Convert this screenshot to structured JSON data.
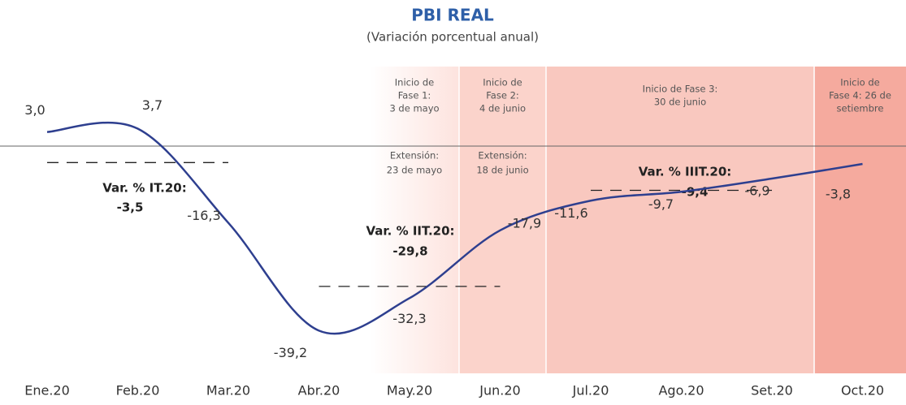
{
  "chart_data": {
    "type": "line",
    "title": "PBI REAL",
    "subtitle": "(Variación porcentual anual)",
    "categories": [
      "Ene.20",
      "Feb.20",
      "Mar.20",
      "Abr.20",
      "May.20",
      "Jun.20",
      "Jul.20",
      "Ago.20",
      "Set.20",
      "Oct.20"
    ],
    "series": [
      {
        "color": "#2e3f8f",
        "values": [
          3.0,
          3.7,
          -16.3,
          -39.2,
          -32.3,
          -17.9,
          -11.6,
          -9.7,
          -6.9,
          -3.8
        ],
        "value_labels": [
          "3,0",
          "3,7",
          "-16,3",
          "-39,2",
          "-32,3",
          "-17,9",
          "-11,6",
          "-9,7",
          "-6,9",
          "-3,8"
        ]
      }
    ],
    "quarters": [
      {
        "label": "Var. % IT.20:",
        "value": -3.5,
        "value_label": "-3,5"
      },
      {
        "label": "Var. % IIT.20:",
        "value": -29.8,
        "value_label": "-29,8"
      },
      {
        "label": "Var. % IIIT.20:",
        "value": -9.4,
        "value_label": "-9,4"
      }
    ],
    "phases": [
      {
        "text": [
          "Inicio de",
          "Fase 1:",
          "3 de mayo"
        ],
        "extension": [
          "Extensión:",
          "23 de mayo"
        ],
        "color": "#fde3de"
      },
      {
        "text": [
          "Inicio de",
          "Fase 2:",
          "4 de junio"
        ],
        "extension": [
          "Extensión:",
          "18 de junio"
        ],
        "color": "#fbd3cb"
      },
      {
        "text": [
          "Inicio de Fase 3:",
          "30 de junio"
        ],
        "color": "#f9c8bf"
      },
      {
        "text": [
          "Inicio de",
          "Fase 4: 26 de",
          "setiembre"
        ],
        "color": "#f5aa9e"
      }
    ]
  }
}
